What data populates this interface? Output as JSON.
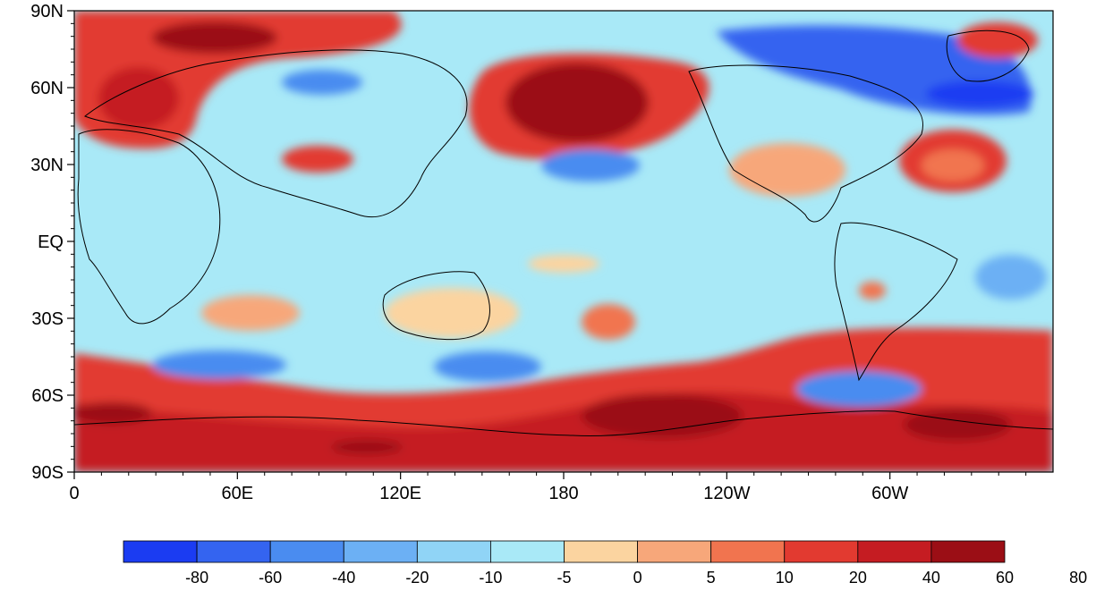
{
  "map": {
    "projection": "cylindrical equidistant",
    "lon_center": 180,
    "y_ticks": [
      {
        "label": "90N",
        "lat": 90
      },
      {
        "label": "60N",
        "lat": 60
      },
      {
        "label": "30N",
        "lat": 30
      },
      {
        "label": "EQ",
        "lat": 0
      },
      {
        "label": "30S",
        "lat": -30
      },
      {
        "label": "60S",
        "lat": -60
      },
      {
        "label": "90S",
        "lat": -90
      }
    ],
    "x_ticks": [
      {
        "label": "0",
        "lon": 0
      },
      {
        "label": "60E",
        "lon": 60
      },
      {
        "label": "120E",
        "lon": 120
      },
      {
        "label": "180",
        "lon": 180
      },
      {
        "label": "120W",
        "lon": 240
      },
      {
        "label": "60W",
        "lon": 300
      }
    ],
    "ocean_fill": "#a9e9f7"
  },
  "colorbar": {
    "boxes": [
      {
        "color": "#1b3cf2"
      },
      {
        "color": "#3464f0"
      },
      {
        "color": "#4a8cf0"
      },
      {
        "color": "#6cb0f4"
      },
      {
        "color": "#90d4f6"
      },
      {
        "color": "#a9e9f7"
      },
      {
        "color": "#fbd4a0"
      },
      {
        "color": "#f7a77a"
      },
      {
        "color": "#f1744f"
      },
      {
        "color": "#e23a30"
      },
      {
        "color": "#c51c22"
      },
      {
        "color": "#9b0e15"
      }
    ],
    "labels": [
      "-80",
      "-60",
      "-40",
      "-20",
      "-10",
      "-5",
      "0",
      "5",
      "10",
      "20",
      "40",
      "60",
      "80"
    ]
  },
  "anomaly_regions": [
    {
      "level": "80",
      "color": "#9b0e15",
      "lon": 160,
      "lat": 52
    },
    {
      "level": "80",
      "color": "#9b0e15",
      "lon": 35,
      "lat": 80
    },
    {
      "level": "80",
      "color": "#9b0e15",
      "lon": 205,
      "lat": -68
    },
    {
      "level": "80",
      "color": "#9b0e15",
      "lon": 330,
      "lat": -70
    },
    {
      "level": "80",
      "color": "#9b0e15",
      "lon": 10,
      "lat": -66
    },
    {
      "level": "60",
      "color": "#c51c22",
      "lon": 110,
      "lat": -75
    },
    {
      "level": "40",
      "color": "#e23a30",
      "lon": 20,
      "lat": 63
    },
    {
      "level": "40",
      "color": "#e23a30",
      "lon": 95,
      "lat": 32
    },
    {
      "level": "40",
      "color": "#e23a30",
      "lon": 350,
      "lat": 32
    },
    {
      "level": "20",
      "color": "#f1744f",
      "lon": 190,
      "lat": -33
    },
    {
      "level": "20",
      "color": "#f1744f",
      "lon": 300,
      "lat": -20
    },
    {
      "level": "20",
      "color": "#f1744f",
      "lon": 265,
      "lat": 30
    },
    {
      "level": "-60",
      "color": "#3464f0",
      "lon": 315,
      "lat": 55
    },
    {
      "level": "-40",
      "color": "#4a8cf0",
      "lon": 80,
      "lat": 58
    },
    {
      "level": "-40",
      "color": "#4a8cf0",
      "lon": 150,
      "lat": 30
    },
    {
      "level": "-40",
      "color": "#4a8cf0",
      "lon": 55,
      "lat": -45
    },
    {
      "level": "-40",
      "color": "#4a8cf0",
      "lon": 140,
      "lat": -47
    },
    {
      "level": "-40",
      "color": "#4a8cf0",
      "lon": 290,
      "lat": -55
    }
  ]
}
